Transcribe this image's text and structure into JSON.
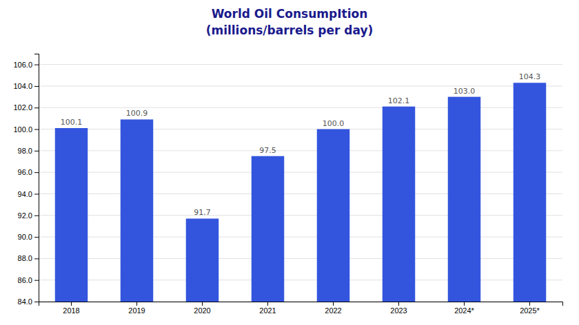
{
  "chart_data": {
    "type": "bar",
    "title": "World Oil ConsumpItion",
    "subtitle": "(millions/barrels per day)",
    "categories": [
      "2018",
      "2019",
      "2020",
      "2021",
      "2022",
      "2023",
      "2024*",
      "2025*"
    ],
    "values": [
      100.1,
      100.9,
      91.7,
      97.5,
      100.0,
      102.1,
      103.0,
      104.3
    ],
    "value_labels": [
      "100.1",
      "100.9",
      "91.7",
      "97.5",
      "100.0",
      "102.1",
      "103.0",
      "104.3"
    ],
    "data_labels": true,
    "color": "#3355dd",
    "ylim": [
      84.0,
      107.0
    ],
    "yticks": [
      {
        "value": 84,
        "label": "84.0"
      },
      {
        "value": 86,
        "label": "86.0"
      },
      {
        "value": 88,
        "label": "88.0"
      },
      {
        "value": 90,
        "label": "90.0"
      },
      {
        "value": 92,
        "label": "92.0"
      },
      {
        "value": 94,
        "label": "94.0"
      },
      {
        "value": 96,
        "label": "96.0"
      },
      {
        "value": 98,
        "label": "98.0"
      },
      {
        "value": 100,
        "label": "100.0"
      },
      {
        "value": 102,
        "label": "102.0"
      },
      {
        "value": 104,
        "label": "104.0"
      },
      {
        "value": 106,
        "label": "106.0"
      }
    ],
    "grid": true
  }
}
